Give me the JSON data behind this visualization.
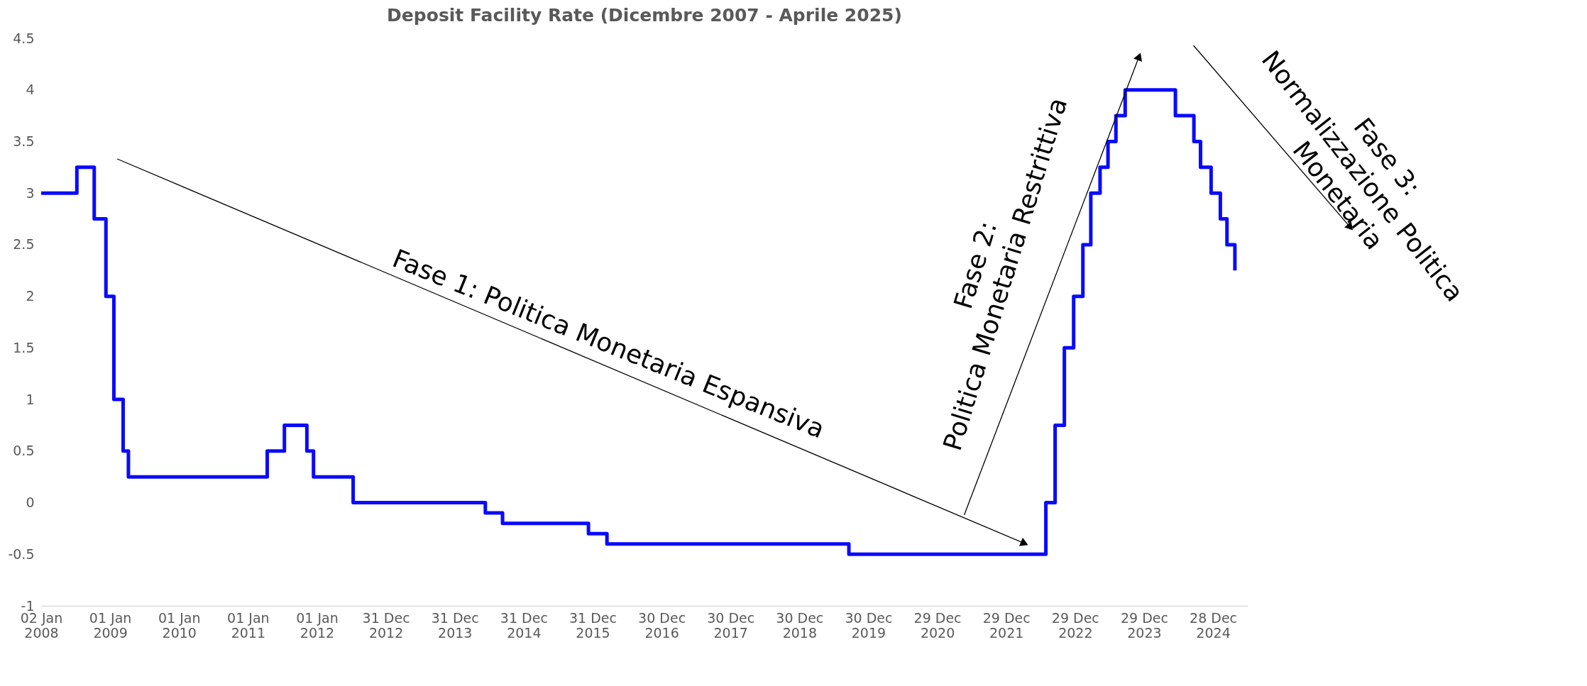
{
  "chart_data": {
    "type": "step",
    "title": "Deposit Facility Rate (Dicembre 2007 - Aprile 2025)",
    "x": [
      "2008-01-02",
      "2008-07-09",
      "2008-10-09",
      "2008-12-10",
      "2009-01-21",
      "2009-03-11",
      "2009-04-08",
      "2011-04-13",
      "2011-07-13",
      "2011-11-09",
      "2011-12-14",
      "2012-07-11",
      "2014-06-11",
      "2014-09-10",
      "2015-12-09",
      "2016-03-16",
      "2019-09-18",
      "2022-07-27",
      "2022-09-14",
      "2022-11-02",
      "2022-12-21",
      "2023-02-08",
      "2023-03-22",
      "2023-05-10",
      "2023-06-21",
      "2023-08-02",
      "2023-09-20",
      "2024-06-12",
      "2024-09-18",
      "2024-10-23",
      "2024-12-18",
      "2025-02-05",
      "2025-03-12",
      "2025-04-23"
    ],
    "values": [
      3.0,
      3.25,
      2.75,
      2.0,
      1.0,
      0.5,
      0.25,
      0.5,
      0.75,
      0.5,
      0.25,
      0.0,
      -0.1,
      -0.2,
      -0.3,
      -0.4,
      -0.5,
      0.0,
      0.75,
      1.5,
      2.0,
      2.5,
      3.0,
      3.25,
      3.5,
      3.75,
      4.0,
      3.75,
      3.5,
      3.25,
      3.0,
      2.75,
      2.5,
      2.25
    ],
    "color": "#0a0aff",
    "xlim": [
      "2008-01-02",
      "2025-06-30"
    ],
    "ylim": [
      -1,
      4.5
    ],
    "yticks": [
      -1,
      -0.5,
      0,
      0.5,
      1,
      1.5,
      2,
      2.5,
      3,
      3.5,
      4,
      4.5
    ],
    "xticks": [
      {
        "value": "2008-01-02",
        "label": "02 Jan 2008"
      },
      {
        "value": "2009-01-01",
        "label": "01 Jan 2009"
      },
      {
        "value": "2010-01-01",
        "label": "01 Jan 2010"
      },
      {
        "value": "2011-01-01",
        "label": "01 Jan 2011"
      },
      {
        "value": "2012-01-01",
        "label": "01 Jan 2012"
      },
      {
        "value": "2012-12-31",
        "label": "31 Dec 2012"
      },
      {
        "value": "2013-12-31",
        "label": "31 Dec 2013"
      },
      {
        "value": "2014-12-31",
        "label": "31 Dec 2014"
      },
      {
        "value": "2015-12-31",
        "label": "31 Dec 2015"
      },
      {
        "value": "2016-12-30",
        "label": "30 Dec 2016"
      },
      {
        "value": "2017-12-30",
        "label": "30 Dec 2017"
      },
      {
        "value": "2018-12-30",
        "label": "30 Dec 2018"
      },
      {
        "value": "2019-12-30",
        "label": "30 Dec 2019"
      },
      {
        "value": "2020-12-29",
        "label": "29 Dec 2020"
      },
      {
        "value": "2021-12-29",
        "label": "29 Dec 2021"
      },
      {
        "value": "2022-12-29",
        "label": "29 Dec 2022"
      },
      {
        "value": "2023-12-29",
        "label": "29 Dec 2023"
      },
      {
        "value": "2024-12-28",
        "label": "28 Dec 2024"
      }
    ],
    "annotations": [
      "Fase 1: Politica Monetaria Espansiva",
      "Fase 2:\nPolitica Monetaria Restrittiva",
      "Fase 3:\nNormalizzazione Politica\nMonetaria"
    ],
    "grid": false
  }
}
